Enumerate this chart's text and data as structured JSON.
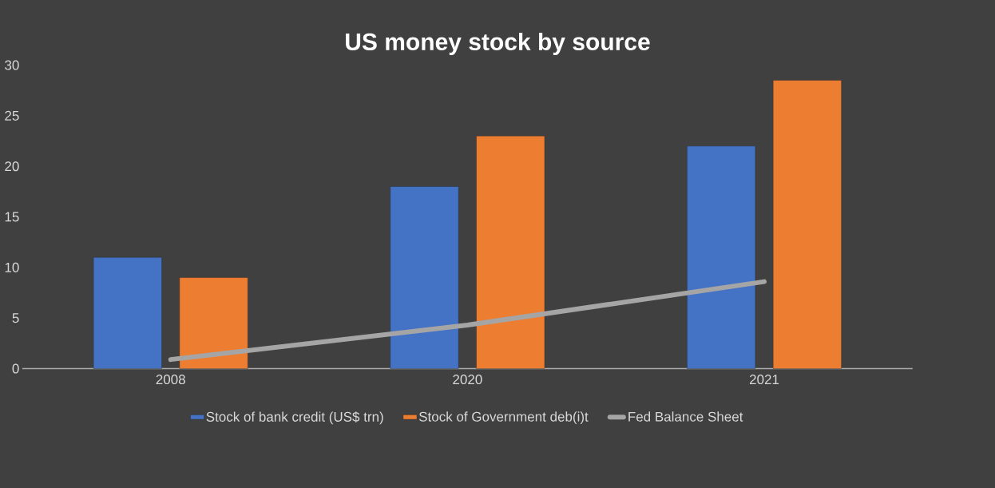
{
  "chart_data": {
    "type": "bar",
    "title": "US money stock by source",
    "categories": [
      "2008",
      "2020",
      "2021"
    ],
    "series": [
      {
        "name": "Stock of bank credit (US$ trn)",
        "color": "#4472c4",
        "values": [
          11,
          18,
          22
        ]
      },
      {
        "name": "Stock of Government deb(i)t",
        "color": "#ed7d31",
        "values": [
          9,
          23,
          28.5
        ]
      },
      {
        "name": "Fed Balance Sheet",
        "color": "#a5a5a5",
        "type": "line",
        "values": [
          0.9,
          4.3,
          8.6
        ]
      }
    ],
    "ylim": [
      0,
      30
    ],
    "yticks": [
      0,
      5,
      10,
      15,
      20,
      25,
      30
    ],
    "grid": false,
    "legend": "bottom",
    "marker": "none"
  }
}
